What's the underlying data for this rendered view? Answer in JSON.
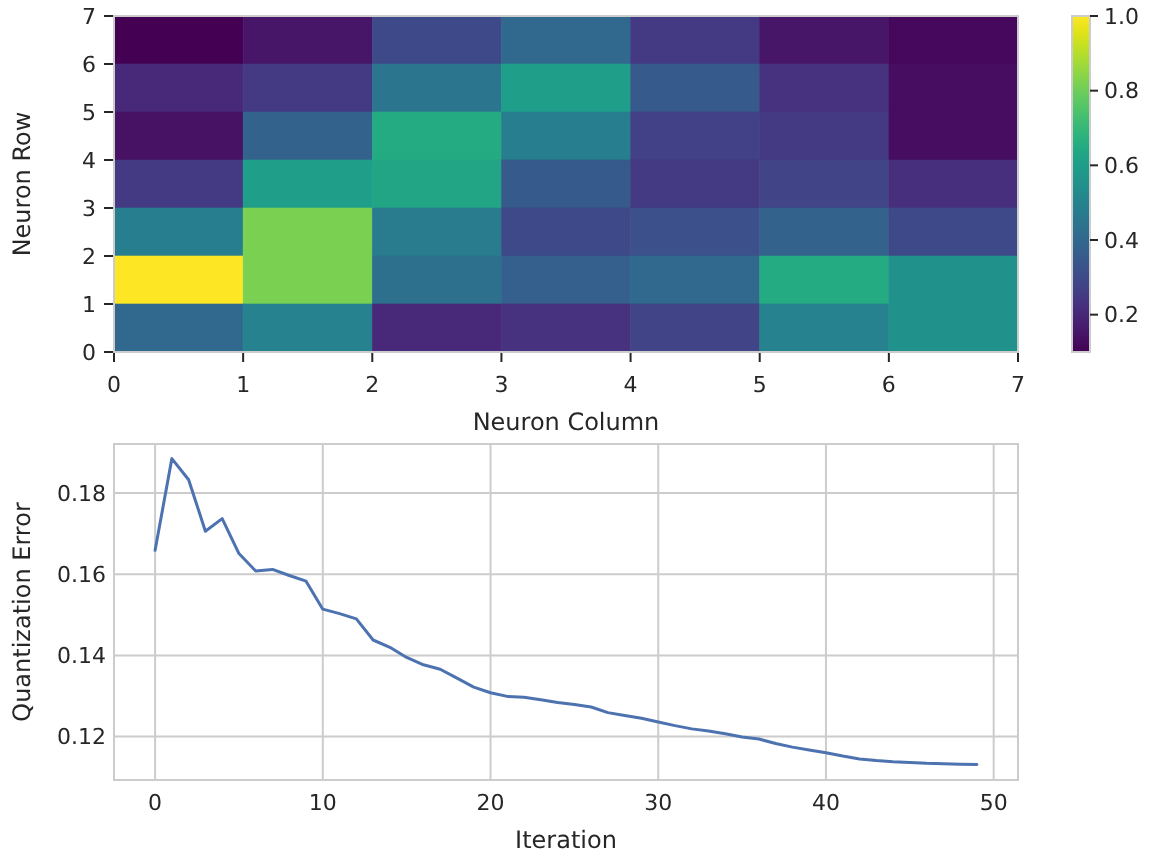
{
  "chart_data": [
    {
      "type": "heatmap",
      "xlabel": "Neuron Column",
      "ylabel": "Neuron Row",
      "xlim": [
        0,
        7
      ],
      "ylim": [
        0,
        7
      ],
      "xticks": [
        0,
        1,
        2,
        3,
        4,
        5,
        6,
        7
      ],
      "yticks": [
        0,
        1,
        2,
        3,
        4,
        5,
        6,
        7
      ],
      "cells": [
        [
          0.1,
          0.15,
          0.3,
          0.4,
          0.25,
          0.15,
          0.12
        ],
        [
          0.2,
          0.25,
          0.45,
          0.6,
          0.35,
          0.23,
          0.13
        ],
        [
          0.14,
          0.38,
          0.65,
          0.48,
          0.27,
          0.25,
          0.13
        ],
        [
          0.25,
          0.6,
          0.63,
          0.35,
          0.25,
          0.28,
          0.22
        ],
        [
          0.48,
          0.82,
          0.47,
          0.3,
          0.32,
          0.38,
          0.3
        ],
        [
          1.0,
          0.82,
          0.43,
          0.37,
          0.4,
          0.65,
          0.55
        ],
        [
          0.4,
          0.5,
          0.2,
          0.23,
          0.28,
          0.5,
          0.55
        ]
      ],
      "clim": [
        0.1,
        1.0
      ],
      "cticks": [
        0.2,
        0.4,
        0.6,
        0.8,
        {
          "value": 1,
          "label": "1.0"
        }
      ]
    },
    {
      "type": "line",
      "xlabel": "Iteration",
      "ylabel": "Quantization Error",
      "xlim": [
        -2.45,
        51.45
      ],
      "ylim": [
        0.1093,
        0.1921
      ],
      "xticks": [
        0,
        10,
        20,
        30,
        40,
        50
      ],
      "yticks": [
        0.12,
        0.14,
        0.16,
        0.18
      ],
      "grid": true,
      "x": [
        0,
        1,
        2,
        3,
        4,
        5,
        6,
        7,
        8,
        9,
        10,
        11,
        12,
        13,
        14,
        15,
        16,
        17,
        18,
        19,
        20,
        21,
        22,
        23,
        24,
        25,
        26,
        27,
        28,
        29,
        30,
        31,
        32,
        33,
        34,
        35,
        36,
        37,
        38,
        39,
        40,
        41,
        42,
        43,
        44,
        45,
        46,
        47,
        48,
        49
      ],
      "series": [
        {
          "color": "#4c72b0",
          "values": [
            0.1659,
            0.1885,
            0.1833,
            0.1706,
            0.1737,
            0.1651,
            0.1608,
            0.1612,
            0.1597,
            0.1583,
            0.1514,
            0.1503,
            0.149,
            0.1438,
            0.142,
            0.1395,
            0.1377,
            0.1366,
            0.1344,
            0.1322,
            0.1308,
            0.1299,
            0.1297,
            0.1291,
            0.1284,
            0.1279,
            0.1273,
            0.1259,
            0.1252,
            0.1245,
            0.1236,
            0.1227,
            0.1219,
            0.1214,
            0.1207,
            0.1199,
            0.1194,
            0.1183,
            0.1174,
            0.1167,
            0.116,
            0.1152,
            0.1145,
            0.1141,
            0.1138,
            0.1136,
            0.1134,
            0.1133,
            0.1132,
            0.1131
          ]
        }
      ]
    }
  ]
}
